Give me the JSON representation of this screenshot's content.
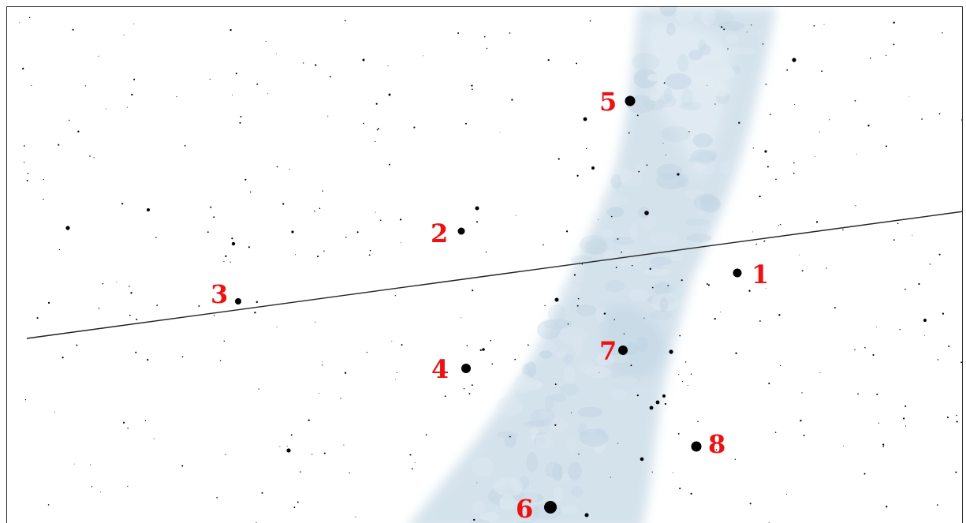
{
  "map": {
    "background_color": "#ffffff",
    "milky_way_color": "#c6d9e6",
    "line_color": "#222222",
    "label_color": "#ee1111",
    "star_color": "#000000"
  },
  "labels": [
    {
      "text": "1"
    },
    {
      "text": "2"
    },
    {
      "text": "3"
    },
    {
      "text": "4"
    },
    {
      "text": "5"
    },
    {
      "text": "6"
    },
    {
      "text": "7"
    },
    {
      "text": "8"
    }
  ]
}
